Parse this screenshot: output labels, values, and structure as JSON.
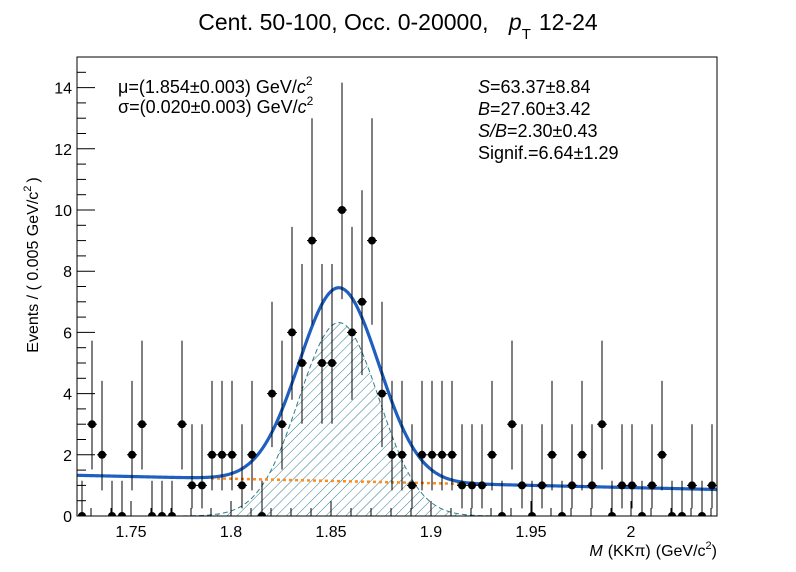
{
  "chart_data": {
    "type": "scatter",
    "title": {
      "main": "Cent. 50-100, Occ. 0-20000,",
      "pt_symbol": "p",
      "pt_sub": "T",
      "pt_range": "12-24"
    },
    "xlabel": {
      "var": "M",
      "paren": "(KK",
      "pi": "π",
      "close": ")",
      "unit": "(GeV/c",
      "sup": "2",
      "unit_close": ")"
    },
    "ylabel": {
      "text": "Events / ( 0.005 GeV/c",
      "sup": "2",
      "close": ")"
    },
    "xlim": [
      1.723,
      2.043
    ],
    "ylim": [
      0,
      15
    ],
    "x_ticks": [
      1.75,
      1.8,
      1.85,
      1.9,
      1.95,
      2.0
    ],
    "x_tick_labels": [
      "1.75",
      "1.8",
      "1.85",
      "1.9",
      "1.95",
      "2"
    ],
    "y_ticks": [
      0,
      2,
      4,
      6,
      8,
      10,
      12,
      14
    ],
    "y_tick_labels": [
      "0",
      "2",
      "4",
      "6",
      "8",
      "10",
      "12",
      "14"
    ],
    "x_minor_step": 0.01,
    "y_minor_step": 0.5,
    "grid": false,
    "bin_width": 0.005,
    "x": [
      1.7255,
      1.7305,
      1.7355,
      1.7405,
      1.7455,
      1.7505,
      1.7555,
      1.7605,
      1.7655,
      1.7705,
      1.7755,
      1.7805,
      1.7855,
      1.7905,
      1.7955,
      1.8005,
      1.8055,
      1.8105,
      1.8155,
      1.8205,
      1.8255,
      1.8305,
      1.8355,
      1.8405,
      1.8455,
      1.8505,
      1.8555,
      1.8605,
      1.8655,
      1.8705,
      1.8755,
      1.8805,
      1.8855,
      1.8905,
      1.8955,
      1.9005,
      1.9055,
      1.9105,
      1.9155,
      1.9205,
      1.9255,
      1.9305,
      1.9355,
      1.9405,
      1.9455,
      1.9505,
      1.9555,
      1.9605,
      1.9655,
      1.9705,
      1.9755,
      1.9805,
      1.9855,
      1.9905,
      1.9955,
      2.0005,
      2.0055,
      2.0105,
      2.0155,
      2.0205,
      2.0255,
      2.0305,
      2.0355,
      2.0405
    ],
    "y": [
      0,
      3,
      2,
      0,
      0,
      2,
      3,
      0,
      0,
      0,
      3,
      1,
      1,
      2,
      2,
      2,
      1,
      2,
      0,
      4,
      3,
      6,
      5,
      9,
      5,
      5,
      10,
      6,
      7,
      9,
      4,
      2,
      2,
      1,
      2,
      2,
      2,
      2,
      1,
      1,
      1,
      2,
      0,
      3,
      1,
      0,
      1,
      2,
      0,
      1,
      2,
      1,
      3,
      0,
      1,
      1,
      0,
      1,
      2,
      0,
      0,
      1,
      0,
      1
    ],
    "fit": {
      "mu": 1.854,
      "sigma": 0.02,
      "signal_peak": 6.32,
      "bkg_at_1_723": 1.33,
      "bkg_slope_per_gev": -1.45,
      "bkg_min_x": 1.79
    },
    "annotations": {
      "mu": {
        "symbol": "μ",
        "text": "=(1.854±0.003) GeV/",
        "c": "c",
        "sup": "2"
      },
      "sigma": {
        "symbol": "σ",
        "text": "=(0.020±0.003) GeV/",
        "c": "c",
        "sup": "2"
      },
      "S": {
        "label": "S",
        "text": "=63.37±8.84"
      },
      "B": {
        "label": "B",
        "text": "=27.60±3.42"
      },
      "SB": {
        "label": "S/B",
        "text": "=2.30±0.43"
      },
      "signif": {
        "text": "Signif.=6.64±1.29"
      }
    },
    "colors": {
      "total_fit": "#1f5fbf",
      "background_fit": "#ff8c1a",
      "signal_hatch": "#2e7d8c",
      "points": "#000000"
    }
  }
}
